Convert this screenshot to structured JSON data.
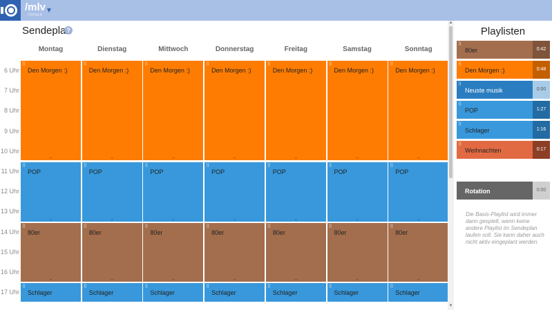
{
  "topbar": {
    "station": "/mlv",
    "role": "OWNER"
  },
  "schedule": {
    "title": "Sendeplan",
    "days": [
      "Montag",
      "Dienstag",
      "Mittwoch",
      "Donnerstag",
      "Freitag",
      "Samstag",
      "Sonntag"
    ],
    "hours": [
      "6 Uhr",
      "7 Uhr",
      "8 Uhr",
      "9 Uhr",
      "10 Uhr",
      "11 Uhr",
      "12 Uhr",
      "13 Uhr",
      "14 Uhr",
      "15 Uhr",
      "16 Uhr",
      "17 Uhr"
    ],
    "blocks": [
      {
        "label": "Den Morgen :)",
        "color": "#fe7c02",
        "start_hour": 6,
        "end_hour": 11
      },
      {
        "label": "POP",
        "color": "#3898db",
        "start_hour": 11,
        "end_hour": 14
      },
      {
        "label": "80er",
        "color": "#a36e4e",
        "start_hour": 14,
        "end_hour": 17
      },
      {
        "label": "Schlager",
        "color": "#3898db",
        "start_hour": 17,
        "end_hour": 18
      }
    ]
  },
  "sidebar": {
    "title": "Playlisten",
    "playlists": [
      {
        "name": "80er",
        "duration": "0:42"
      },
      {
        "name": "Den Morgen :)",
        "duration": "0:48"
      },
      {
        "name": "Neuste musik",
        "duration": "0:00"
      },
      {
        "name": "POP",
        "duration": "1:27"
      },
      {
        "name": "Schlager",
        "duration": "1:16"
      },
      {
        "name": "Weihnachten",
        "duration": "0:17"
      }
    ],
    "rotation": {
      "name": "Rotation",
      "duration": "0:00"
    },
    "rotation_note": "Die Basis-Playlist wird immer dann gespielt, wenn keine andere Playlist im Sendeplan laufen soll. Sie kann daher auch nicht aktiv eingeplant werden."
  }
}
